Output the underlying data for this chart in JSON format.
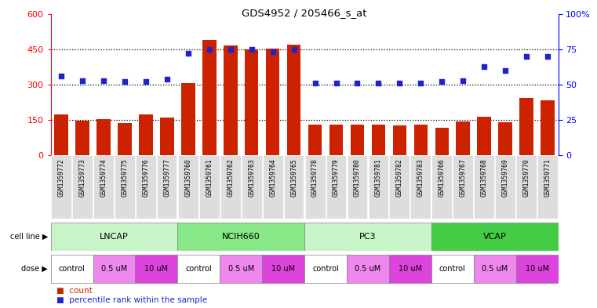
{
  "title": "GDS4952 / 205466_s_at",
  "samples": [
    "GSM1359772",
    "GSM1359773",
    "GSM1359774",
    "GSM1359775",
    "GSM1359776",
    "GSM1359777",
    "GSM1359760",
    "GSM1359761",
    "GSM1359762",
    "GSM1359763",
    "GSM1359764",
    "GSM1359765",
    "GSM1359778",
    "GSM1359779",
    "GSM1359780",
    "GSM1359781",
    "GSM1359782",
    "GSM1359783",
    "GSM1359766",
    "GSM1359767",
    "GSM1359768",
    "GSM1359769",
    "GSM1359770",
    "GSM1359771"
  ],
  "counts": [
    175,
    148,
    153,
    138,
    175,
    160,
    308,
    490,
    465,
    448,
    452,
    468,
    130,
    130,
    130,
    130,
    128,
    130,
    118,
    145,
    165,
    140,
    245,
    235
  ],
  "percentiles": [
    56,
    53,
    53,
    52,
    52,
    54,
    72,
    75,
    75,
    75,
    73,
    75,
    51,
    51,
    51,
    51,
    51,
    51,
    52,
    53,
    63,
    60,
    70,
    70
  ],
  "cell_lines": [
    {
      "name": "LNCAP",
      "start": 0,
      "end": 6,
      "color": "#c8f5c8"
    },
    {
      "name": "NCIH660",
      "start": 6,
      "end": 12,
      "color": "#88e888"
    },
    {
      "name": "PC3",
      "start": 12,
      "end": 18,
      "color": "#c8f5c8"
    },
    {
      "name": "VCAP",
      "start": 18,
      "end": 24,
      "color": "#44cc44"
    }
  ],
  "doses": [
    {
      "label": "control",
      "start": 0,
      "end": 2,
      "color": "#ffffff"
    },
    {
      "label": "0.5 uM",
      "start": 2,
      "end": 4,
      "color": "#ee88ee"
    },
    {
      "label": "10 uM",
      "start": 4,
      "end": 6,
      "color": "#dd44dd"
    },
    {
      "label": "control",
      "start": 6,
      "end": 8,
      "color": "#ffffff"
    },
    {
      "label": "0.5 uM",
      "start": 8,
      "end": 10,
      "color": "#ee88ee"
    },
    {
      "label": "10 uM",
      "start": 10,
      "end": 12,
      "color": "#dd44dd"
    },
    {
      "label": "control",
      "start": 12,
      "end": 14,
      "color": "#ffffff"
    },
    {
      "label": "0.5 uM",
      "start": 14,
      "end": 16,
      "color": "#ee88ee"
    },
    {
      "label": "10 uM",
      "start": 16,
      "end": 18,
      "color": "#dd44dd"
    },
    {
      "label": "control",
      "start": 18,
      "end": 20,
      "color": "#ffffff"
    },
    {
      "label": "0.5 uM",
      "start": 20,
      "end": 22,
      "color": "#ee88ee"
    },
    {
      "label": "10 uM",
      "start": 22,
      "end": 24,
      "color": "#dd44dd"
    }
  ],
  "bar_color": "#cc2200",
  "dot_color": "#2222cc",
  "ylim_left": [
    0,
    600
  ],
  "ylim_right": [
    0,
    100
  ],
  "yticks_left": [
    0,
    150,
    300,
    450,
    600
  ],
  "yticks_right": [
    0,
    25,
    50,
    75,
    100
  ],
  "ytick_labels_right": [
    "0",
    "25",
    "50",
    "75",
    "100%"
  ],
  "hline_values": [
    150,
    300,
    450
  ],
  "background_color": "#ffffff",
  "xticklabel_bg": "#dddddd",
  "separator_color": "#888888"
}
